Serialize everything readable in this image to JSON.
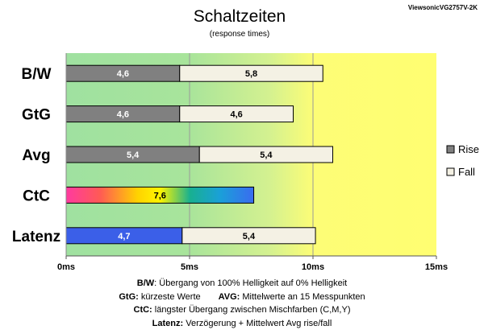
{
  "model": "ViewsonicVG2757V-2K",
  "chart_data": {
    "type": "bar",
    "orientation": "horizontal",
    "stacked": true,
    "title": "Schaltzeiten",
    "subtitle": "(response times)",
    "categories": [
      "B/W",
      "GtG",
      "Avg",
      "CtC",
      "Latenz"
    ],
    "series": [
      {
        "name": "Rise",
        "values": [
          4.6,
          4.6,
          5.4,
          null,
          4.7
        ]
      },
      {
        "name": "Fall",
        "values": [
          5.8,
          4.6,
          5.4,
          null,
          5.4
        ]
      }
    ],
    "single_values": {
      "CtC": 7.6
    },
    "value_labels": {
      "rise": [
        "4,6",
        "4,6",
        "5,4",
        "",
        "4,7"
      ],
      "fall": [
        "5,8",
        "4,6",
        "5,4",
        "",
        "5,4"
      ],
      "ctc": "7,6"
    },
    "xlim": [
      0,
      15
    ],
    "xticks": [
      0,
      5,
      10,
      15
    ],
    "xtick_labels": [
      "0ms",
      "5ms",
      "10ms",
      "15ms"
    ],
    "background_zones": [
      "green",
      "yellow-green gradient",
      "yellow"
    ],
    "legend": {
      "position": "right",
      "entries": [
        "Rise",
        "Fall"
      ]
    },
    "colors": {
      "rise": "#808080",
      "fall": "#f4f1e4",
      "latenz": "#3b5fe8",
      "green_zone": "#9fe1a0",
      "yellow_zone": "#fffe71"
    }
  },
  "notes": [
    {
      "bold": "B/W",
      "text": ":  Übergang von 100% Helligkeit auf 0% Helligkeit"
    },
    {
      "bold": "GtG:",
      "text": " kürzeste  Werte",
      "bold2": "AVG:",
      "text2": " Mittelwerte  an 15 Messpunkten"
    },
    {
      "bold": "CtC:",
      "text": " längster Übergang  zwischen Mischfarben (C,M,Y)"
    },
    {
      "bold": "Latenz:",
      "text": " Verzögerung  + Mittelwert Avg rise/fall"
    }
  ]
}
